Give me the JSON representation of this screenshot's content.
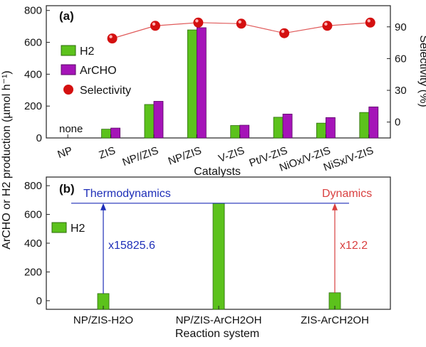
{
  "colors": {
    "h2": "#5cc21c",
    "h2_edge": "#2d6b0c",
    "archo": "#a514b8",
    "archo_edge": "#5a0a66",
    "selectivity_line": "#e05a5a",
    "selectivity_marker": "#d41010",
    "thermo": "#1f2fb8",
    "dynamics": "#d94040"
  },
  "chart_data": [
    {
      "panel": "(a)",
      "type": "bar",
      "xlabel": "Catalysts",
      "ylabel": "ArCHO or H2 production (µmol h⁻¹)",
      "y2label": "Selectivity (%)",
      "ylim": [
        0,
        830
      ],
      "yticks": [
        0,
        200,
        400,
        600,
        800
      ],
      "y2lim": [
        -15,
        110
      ],
      "y2ticks": [
        0,
        30,
        60,
        90
      ],
      "categories": [
        "NP",
        "ZIS",
        "NP//ZIS",
        "NP/ZIS",
        "V-ZIS",
        "Pt/V-ZIS",
        "NiOx/V-ZIS",
        "NiSx/V-ZIS"
      ],
      "annotation": "none",
      "series": [
        {
          "name": "H2",
          "values": [
            0,
            55,
            210,
            678,
            78,
            130,
            93,
            160
          ]
        },
        {
          "name": "ArCHO",
          "values": [
            0,
            62,
            230,
            692,
            80,
            150,
            128,
            195
          ]
        },
        {
          "name": "Selectivity",
          "axis": "right",
          "values": [
            null,
            79,
            91,
            94,
            93,
            84,
            91,
            94
          ]
        }
      ]
    },
    {
      "panel": "(b)",
      "type": "bar",
      "xlabel": "Reaction system",
      "ylim": [
        -60,
        860
      ],
      "yticks": [
        0,
        200,
        400,
        600,
        800
      ],
      "categories": [
        "NP/ZIS-H2O",
        "NP/ZIS-ArCH2OH",
        "ZIS-ArCH2OH"
      ],
      "series": [
        {
          "name": "H2",
          "values": [
            -0.04,
            678,
            55
          ]
        }
      ],
      "annotations": {
        "thermo_label": "Thermodynamics",
        "thermo_factor": "x15825.6",
        "dynamics_label": "Dynamics",
        "dynamics_factor": "x12.2"
      }
    }
  ]
}
